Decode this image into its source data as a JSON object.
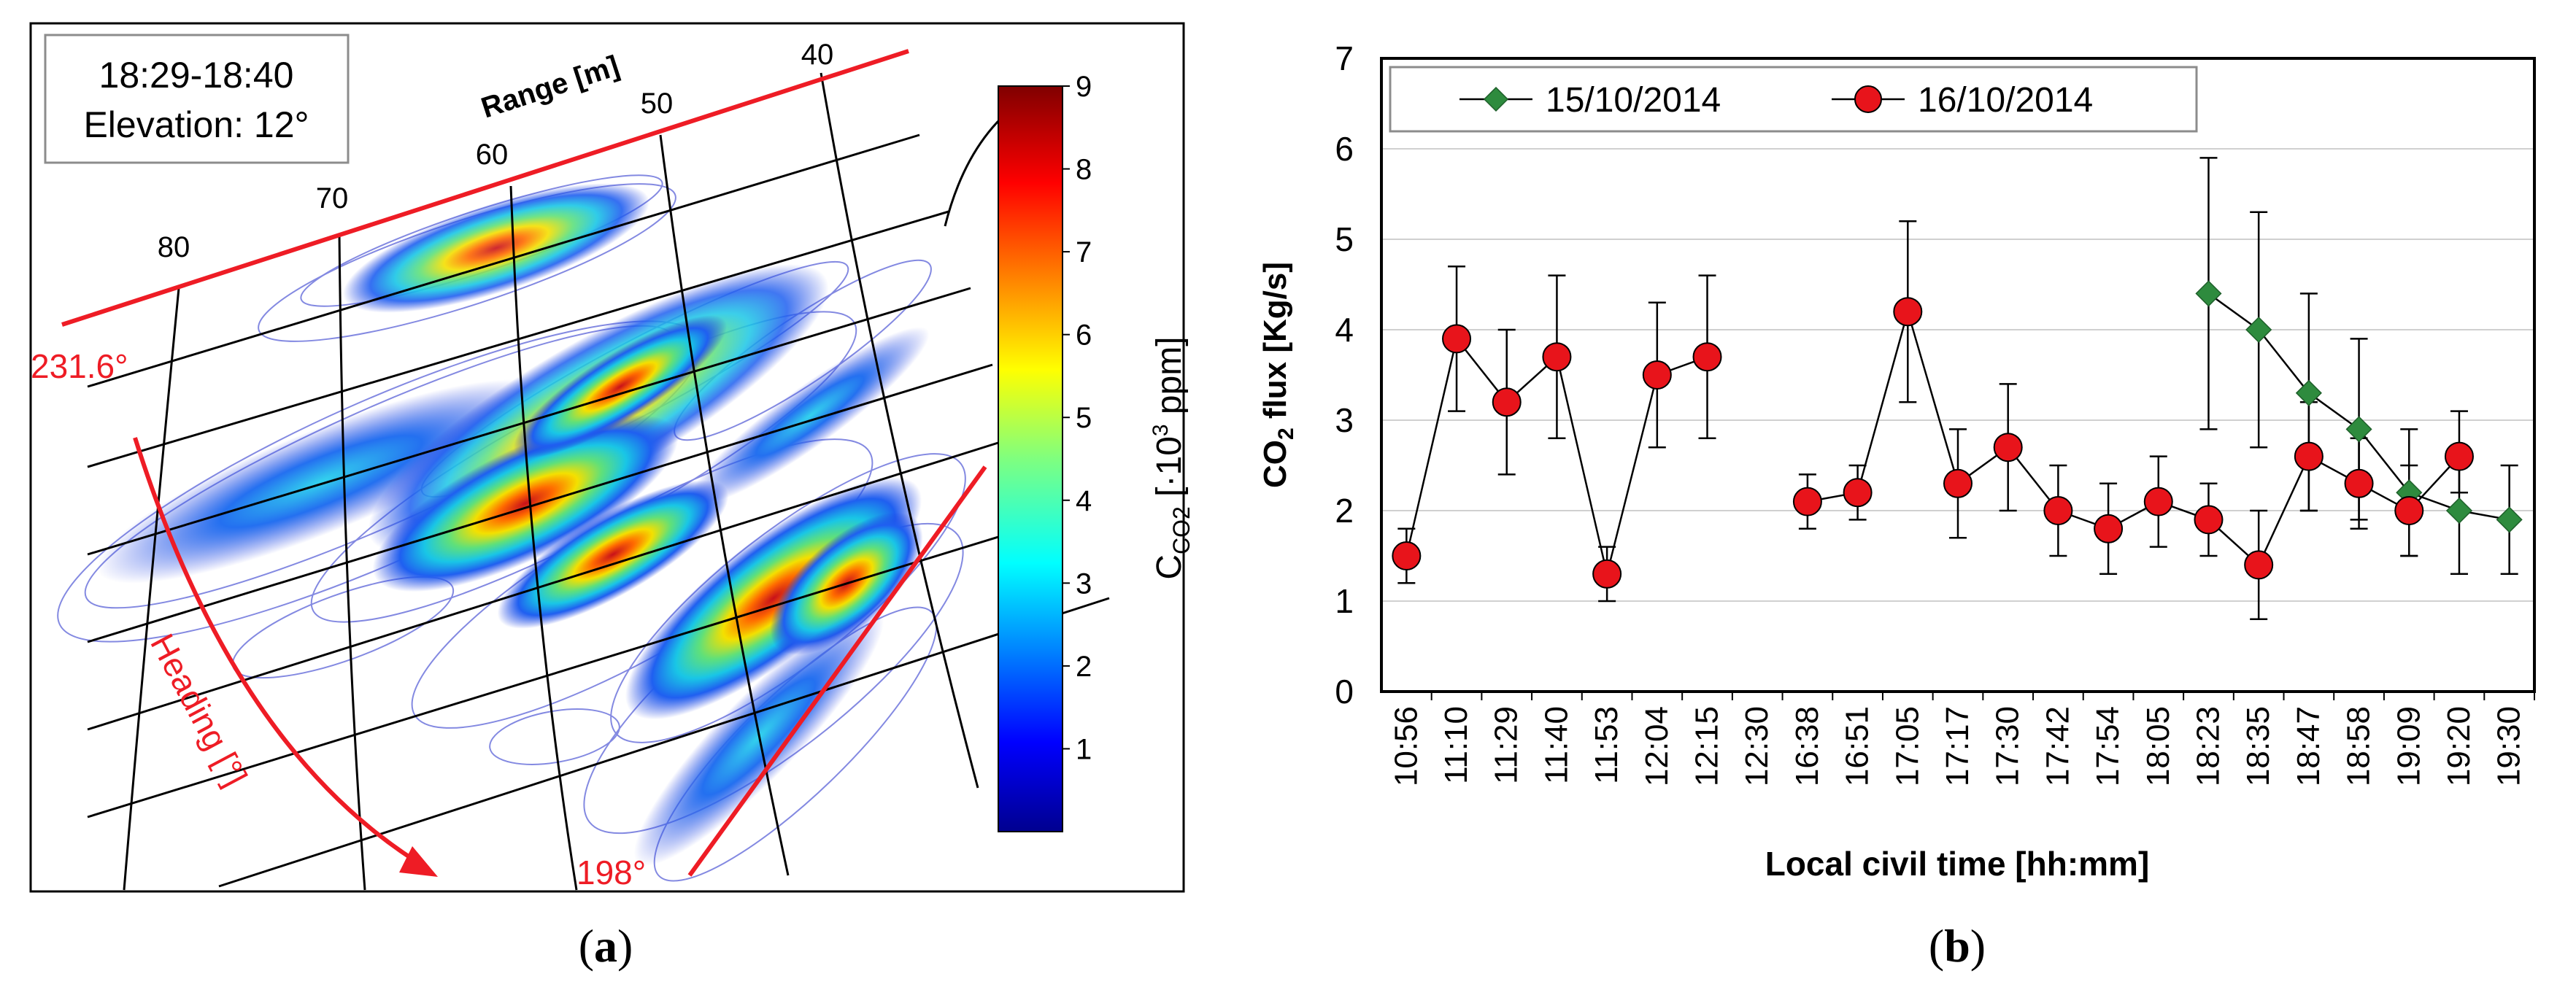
{
  "panel_a": {
    "caption": "a",
    "time_window": "18:29-18:40",
    "elevation_label": "Elevation: 12°",
    "range_axis_title": "Range [m]",
    "range_ticks": [
      "80",
      "70",
      "60",
      "50",
      "40"
    ],
    "heading_title": "Heading [°]",
    "heading_start": "231.6°",
    "heading_end": "198°",
    "colorbar_label_main": "C",
    "colorbar_label_sub": "CO2",
    "colorbar_label_rest": " [·10",
    "colorbar_label_sup": "3",
    "colorbar_label_unit": " ppm]",
    "colorbar_ticks": [
      "9",
      "8",
      "7",
      "6",
      "5",
      "4",
      "3",
      "2",
      "1"
    ],
    "colors": {
      "accent": "#ee1c25"
    }
  },
  "panel_b": {
    "caption": "b",
    "colors": {
      "series_1": "#2e8b3e",
      "series_2": "#e8141b"
    }
  },
  "chart_data": {
    "type": "line",
    "title": "",
    "ylabel_main": "CO",
    "ylabel_sub": "2",
    "ylabel_rest": " flux [Kg/s]",
    "xlabel": "Local civil time [hh:mm]",
    "ylim": [
      0,
      7
    ],
    "yticks": [
      "0",
      "1",
      "2",
      "3",
      "4",
      "5",
      "6",
      "7"
    ],
    "grid": "horizontal",
    "legend": "top-left",
    "categories": [
      "10:56",
      "11:10",
      "11:29",
      "11:40",
      "11:53",
      "12:04",
      "12:15",
      "12:30",
      "16:38",
      "16:51",
      "17:05",
      "17:17",
      "17:30",
      "17:42",
      "17:54",
      "18:05",
      "18:23",
      "18:35",
      "18:47",
      "18:58",
      "19:09",
      "19:20",
      "19:30"
    ],
    "series": [
      {
        "name": "15/10/2014",
        "marker": "diamond",
        "values": [
          null,
          null,
          null,
          null,
          null,
          null,
          null,
          null,
          null,
          null,
          null,
          null,
          null,
          null,
          null,
          null,
          4.4,
          4.0,
          3.3,
          2.9,
          2.2,
          2.0,
          1.9
        ],
        "err_low": [
          null,
          null,
          null,
          null,
          null,
          null,
          null,
          null,
          null,
          null,
          null,
          null,
          null,
          null,
          null,
          null,
          2.9,
          2.7,
          2.0,
          1.9,
          1.5,
          1.3,
          1.3
        ],
        "err_high": [
          null,
          null,
          null,
          null,
          null,
          null,
          null,
          null,
          null,
          null,
          null,
          null,
          null,
          null,
          null,
          null,
          5.9,
          5.3,
          4.4,
          3.9,
          2.9,
          2.7,
          2.5
        ]
      },
      {
        "name": "16/10/2014",
        "marker": "circle",
        "values": [
          1.5,
          3.9,
          3.2,
          3.7,
          1.3,
          3.5,
          3.7,
          null,
          2.1,
          2.2,
          4.2,
          2.3,
          2.7,
          2.0,
          1.8,
          2.1,
          1.9,
          1.4,
          2.6,
          2.3,
          2.0,
          2.6,
          null
        ],
        "err_low": [
          1.2,
          3.1,
          2.4,
          2.8,
          1.0,
          2.7,
          2.8,
          null,
          1.8,
          1.9,
          3.2,
          1.7,
          2.0,
          1.5,
          1.3,
          1.6,
          1.5,
          0.8,
          2.0,
          1.8,
          1.5,
          2.2,
          null
        ],
        "err_high": [
          1.8,
          4.7,
          4.0,
          4.6,
          1.6,
          4.3,
          4.6,
          null,
          2.4,
          2.5,
          5.2,
          2.9,
          3.4,
          2.5,
          2.3,
          2.6,
          2.3,
          2.0,
          3.2,
          2.8,
          2.5,
          3.1,
          null
        ]
      }
    ]
  }
}
